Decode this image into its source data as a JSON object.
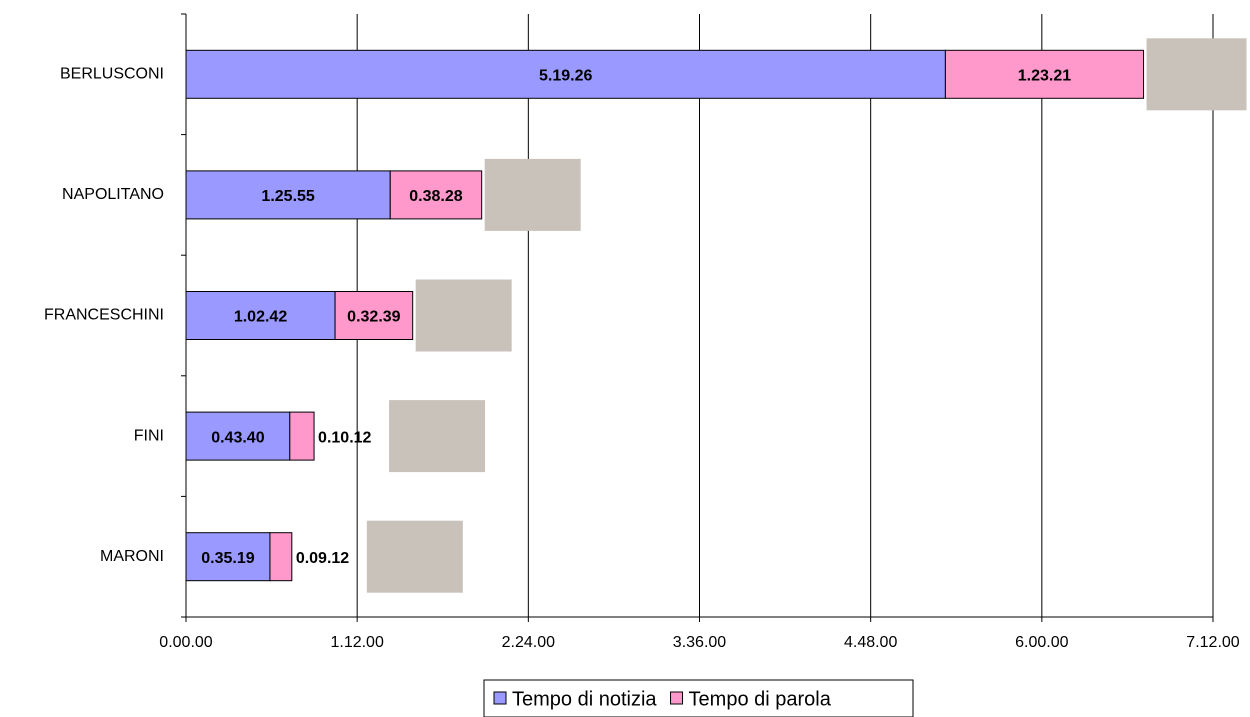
{
  "chart_data": {
    "type": "stacked_bar_horizontal",
    "categories": [
      "BERLUSCONI",
      "NAPOLITANO",
      "FRANCESCHINI",
      "FINI",
      "MARONI"
    ],
    "series": [
      {
        "name": "Tempo di notizia",
        "color": "#9999ff",
        "values": [
          5.3239,
          1.4319,
          1.045,
          0.7278,
          0.5886
        ],
        "value_labels": [
          "5.19.26",
          "1.25.55",
          "1.02.42",
          "0.43.40",
          "0.35.19"
        ]
      },
      {
        "name": "Tempo di parola",
        "color": "#ff99cc",
        "values": [
          1.3892,
          0.6411,
          0.5442,
          0.17,
          0.1533
        ],
        "value_labels": [
          "1.23.21",
          "0.38.28",
          "0.32.39",
          "0.10.12",
          "0.09.12"
        ]
      }
    ],
    "xlim": [
      0,
      7.2
    ],
    "xticks": [
      {
        "value": 0,
        "label": "0.00.00"
      },
      {
        "value": 1.2,
        "label": "1.12.00"
      },
      {
        "value": 2.4,
        "label": "2.24.00"
      },
      {
        "value": 3.6,
        "label": "3.36.00"
      },
      {
        "value": 4.8,
        "label": "4.48.00"
      },
      {
        "value": 6,
        "label": "6.00.00"
      },
      {
        "value": 7.2,
        "label": "7.12.00"
      }
    ],
    "grid": true,
    "legend": "bottom"
  }
}
